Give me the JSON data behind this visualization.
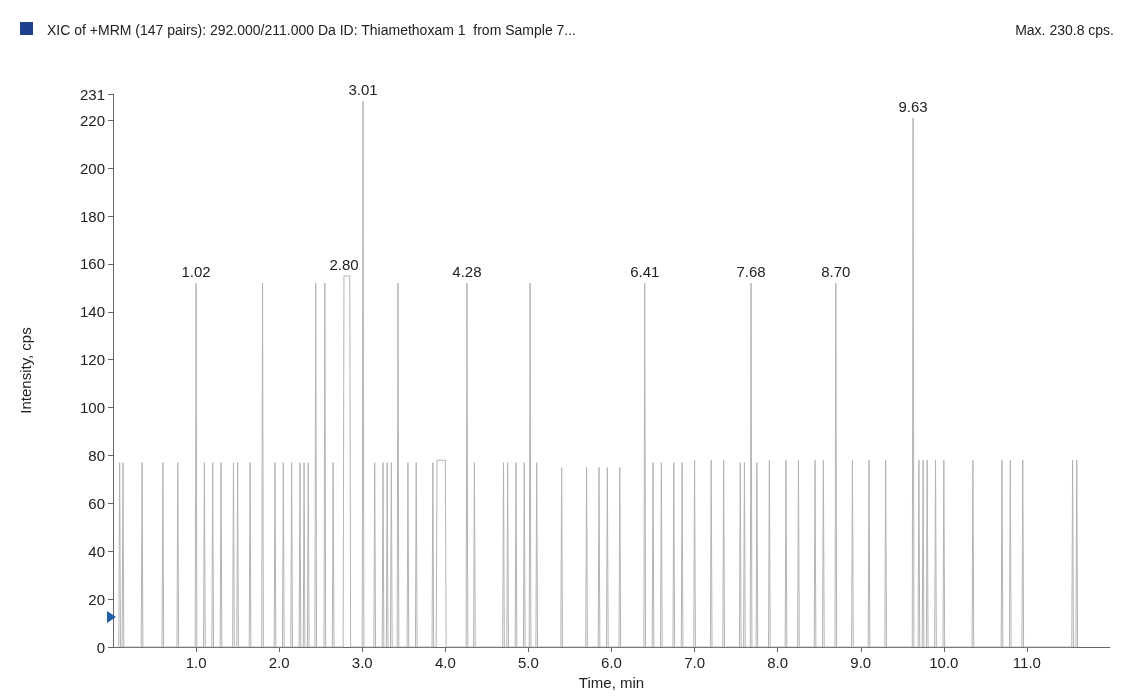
{
  "chart_data": {
    "type": "line",
    "title": "XIC of +MRM (147 pairs): 292.000/211.000 Da ID: Thiamethoxam 1  from Sample 7...",
    "xlabel": "Time, min",
    "ylabel": "Intensity, cps",
    "annotations": [
      "Max. 230.8 cps.",
      {
        "text": "1.02",
        "x": 1.0,
        "y": 152
      },
      {
        "text": "2.80",
        "x": 2.78,
        "y": 155
      },
      {
        "text": "3.01",
        "x": 3.01,
        "y": 228
      },
      {
        "text": "4.28",
        "x": 4.26,
        "y": 152
      },
      {
        "text": "6.41",
        "x": 6.4,
        "y": 152
      },
      {
        "text": "7.68",
        "x": 7.68,
        "y": 152
      },
      {
        "text": "8.70",
        "x": 8.7,
        "y": 152
      },
      {
        "text": "9.63",
        "x": 9.63,
        "y": 221
      }
    ],
    "x": [
      0.07,
      0.08,
      0.09,
      0.11,
      0.12,
      0.13,
      0.34,
      0.35,
      0.36,
      0.59,
      0.6,
      0.61,
      0.77,
      0.78,
      0.79,
      0.99,
      1.0,
      1.01,
      1.09,
      1.1,
      1.11,
      1.19,
      1.2,
      1.21,
      1.29,
      1.3,
      1.31,
      1.44,
      1.45,
      1.46,
      1.49,
      1.5,
      1.51,
      1.64,
      1.65,
      1.66,
      1.79,
      1.8,
      1.81,
      1.94,
      1.95,
      1.96,
      2.04,
      2.05,
      2.06,
      2.14,
      2.15,
      2.16,
      2.24,
      2.25,
      2.26,
      2.29,
      2.3,
      2.31,
      2.34,
      2.35,
      2.36,
      2.43,
      2.44,
      2.45,
      2.54,
      2.55,
      2.56,
      2.64,
      2.65,
      2.66,
      2.77,
      2.78,
      2.85,
      2.86,
      3.0,
      3.01,
      3.02,
      3.14,
      3.15,
      3.16,
      3.24,
      3.25,
      3.26,
      3.29,
      3.3,
      3.31,
      3.34,
      3.35,
      3.36,
      3.42,
      3.43,
      3.44,
      3.54,
      3.55,
      3.56,
      3.64,
      3.65,
      3.66,
      3.84,
      3.85,
      3.86,
      3.89,
      3.9,
      4.0,
      4.01,
      4.25,
      4.26,
      4.27,
      4.34,
      4.35,
      4.36,
      4.69,
      4.7,
      4.71,
      4.74,
      4.75,
      4.76,
      4.84,
      4.85,
      4.86,
      4.94,
      4.95,
      4.96,
      5.01,
      5.02,
      5.03,
      5.09,
      5.1,
      5.11,
      5.39,
      5.4,
      5.41,
      5.69,
      5.7,
      5.71,
      5.84,
      5.85,
      5.86,
      5.94,
      5.95,
      5.96,
      6.09,
      6.1,
      6.11,
      6.39,
      6.4,
      6.41,
      6.49,
      6.5,
      6.51,
      6.59,
      6.6,
      6.61,
      6.74,
      6.75,
      6.76,
      6.84,
      6.85,
      6.86,
      6.99,
      7.0,
      7.01,
      7.19,
      7.2,
      7.21,
      7.34,
      7.35,
      7.36,
      7.54,
      7.55,
      7.56,
      7.59,
      7.6,
      7.61,
      7.67,
      7.68,
      7.69,
      7.74,
      7.75,
      7.76,
      7.89,
      7.9,
      7.91,
      8.09,
      8.1,
      8.11,
      8.24,
      8.25,
      8.26,
      8.44,
      8.45,
      8.46,
      8.54,
      8.55,
      8.56,
      8.69,
      8.7,
      8.71,
      8.89,
      8.9,
      8.91,
      9.09,
      9.1,
      9.11,
      9.29,
      9.3,
      9.31,
      9.62,
      9.63,
      9.64,
      9.69,
      9.7,
      9.71,
      9.74,
      9.75,
      9.76,
      9.79,
      9.8,
      9.81,
      9.89,
      9.9,
      9.91,
      9.99,
      10.0,
      10.01,
      10.34,
      10.35,
      10.36,
      10.69,
      10.7,
      10.71,
      10.79,
      10.8,
      10.81,
      10.94,
      10.95,
      10.96,
      11.54,
      11.55,
      11.56,
      11.59,
      11.6,
      11.61
    ],
    "series": [
      {
        "color": "#b4b4b4",
        "values": [
          0,
          77,
          0,
          0,
          77,
          0,
          0,
          77,
          0,
          0,
          77,
          0,
          0,
          77,
          0,
          0,
          152,
          0,
          0,
          77,
          0,
          0,
          77,
          0,
          0,
          77,
          0,
          0,
          77,
          0,
          0,
          77,
          0,
          0,
          77,
          0,
          0,
          152,
          0,
          0,
          77,
          0,
          0,
          77,
          0,
          0,
          77,
          0,
          0,
          77,
          0,
          0,
          77,
          0,
          0,
          77,
          0,
          0,
          152,
          0,
          0,
          152,
          0,
          0,
          77,
          0,
          0,
          155,
          155,
          0,
          0,
          228,
          0,
          0,
          77,
          0,
          0,
          77,
          0,
          0,
          77,
          0,
          0,
          77,
          0,
          0,
          152,
          0,
          0,
          77,
          0,
          0,
          77,
          0,
          0,
          77,
          0,
          0,
          78,
          78,
          0,
          0,
          152,
          0,
          0,
          77,
          0,
          0,
          77,
          0,
          0,
          77,
          0,
          0,
          77,
          0,
          0,
          77,
          0,
          0,
          152,
          0,
          0,
          77,
          0,
          0,
          75,
          0,
          0,
          75,
          0,
          0,
          75,
          0,
          0,
          75,
          0,
          0,
          75,
          0,
          0,
          152,
          0,
          0,
          77,
          0,
          0,
          77,
          0,
          0,
          77,
          0,
          0,
          77,
          0,
          0,
          78,
          0,
          0,
          78,
          0,
          0,
          78,
          0,
          0,
          77,
          0,
          0,
          77,
          0,
          0,
          152,
          0,
          0,
          77,
          0,
          0,
          78,
          0,
          0,
          78,
          0,
          0,
          78,
          0,
          0,
          78,
          0,
          0,
          78,
          0,
          0,
          152,
          0,
          0,
          78,
          0,
          0,
          78,
          0,
          0,
          78,
          0,
          0,
          221,
          0,
          0,
          78,
          0,
          0,
          78,
          0,
          0,
          78,
          0,
          0,
          78,
          0,
          0,
          78,
          0,
          0,
          78,
          0,
          0,
          78,
          0,
          0,
          78,
          0,
          0,
          78,
          0,
          0,
          78,
          0,
          0,
          78,
          0
        ]
      }
    ],
    "xlim": [
      0,
      12
    ],
    "xticks": [
      {
        "value": 1,
        "label": "1.0"
      },
      {
        "value": 2,
        "label": "2.0"
      },
      {
        "value": 3,
        "label": "3.0"
      },
      {
        "value": 4,
        "label": "4.0"
      },
      {
        "value": 5,
        "label": "5.0"
      },
      {
        "value": 6,
        "label": "6.0"
      },
      {
        "value": 7,
        "label": "7.0"
      },
      {
        "value": 8,
        "label": "8.0"
      },
      {
        "value": 9,
        "label": "9.0"
      },
      {
        "value": 10,
        "label": "10.0"
      },
      {
        "value": 11,
        "label": "11.0"
      }
    ],
    "ylim": [
      0,
      231
    ],
    "yticks": [
      0,
      20,
      40,
      60,
      80,
      100,
      120,
      140,
      160,
      180,
      200,
      220,
      231
    ],
    "grid": false,
    "marker": "none",
    "line_style": "solid"
  }
}
